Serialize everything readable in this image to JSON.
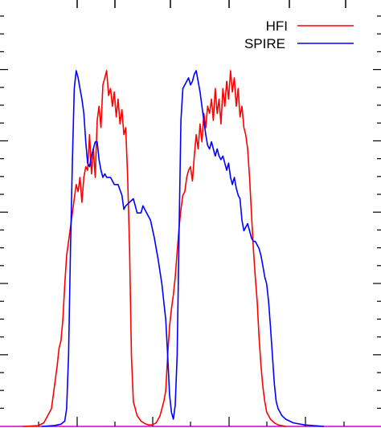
{
  "chart_data": {
    "type": "line",
    "title": "",
    "xlabel": "",
    "ylabel": "",
    "xlim": [
      0,
      100
    ],
    "ylim": [
      0,
      1.0
    ],
    "grid": false,
    "legend_position": "top-right",
    "series": [
      {
        "name": "HFI",
        "color": "#ff0000",
        "points": [
          [
            6.0,
            0.0
          ],
          [
            10.0,
            0.002
          ],
          [
            11.5,
            0.01
          ],
          [
            12.5,
            0.03
          ],
          [
            13.5,
            0.05
          ],
          [
            14.0,
            0.09
          ],
          [
            15.0,
            0.17
          ],
          [
            15.5,
            0.22
          ],
          [
            16.0,
            0.24
          ],
          [
            16.5,
            0.3
          ],
          [
            17.0,
            0.4
          ],
          [
            17.5,
            0.48
          ],
          [
            18.0,
            0.52
          ],
          [
            18.5,
            0.56
          ],
          [
            19.0,
            0.6
          ],
          [
            19.5,
            0.64
          ],
          [
            20.0,
            0.68
          ],
          [
            20.5,
            0.66
          ],
          [
            21.0,
            0.7
          ],
          [
            21.5,
            0.63
          ],
          [
            22.0,
            0.7
          ],
          [
            22.5,
            0.73
          ],
          [
            23.0,
            0.72
          ],
          [
            23.5,
            0.82
          ],
          [
            24.0,
            0.71
          ],
          [
            24.5,
            0.78
          ],
          [
            25.0,
            0.7
          ],
          [
            25.5,
            0.86
          ],
          [
            26.0,
            0.9
          ],
          [
            26.5,
            0.84
          ],
          [
            27.0,
            0.96
          ],
          [
            27.5,
            0.98
          ],
          [
            28.0,
            1.0
          ],
          [
            28.5,
            0.93
          ],
          [
            29.0,
            0.95
          ],
          [
            29.5,
            0.9
          ],
          [
            30.0,
            0.94
          ],
          [
            30.5,
            0.87
          ],
          [
            31.0,
            0.92
          ],
          [
            31.5,
            0.85
          ],
          [
            32.0,
            0.89
          ],
          [
            32.5,
            0.82
          ],
          [
            33.0,
            0.84
          ],
          [
            33.5,
            0.7
          ],
          [
            34.0,
            0.5
          ],
          [
            34.5,
            0.2
          ],
          [
            35.0,
            0.07
          ],
          [
            36.0,
            0.03
          ],
          [
            37.0,
            0.015
          ],
          [
            38.0,
            0.008
          ],
          [
            39.0,
            0.004
          ],
          [
            40.0,
            0.004
          ],
          [
            41.0,
            0.01
          ],
          [
            42.0,
            0.03
          ],
          [
            43.0,
            0.07
          ],
          [
            43.5,
            0.1
          ],
          [
            44.0,
            0.2
          ],
          [
            44.5,
            0.28
          ],
          [
            45.0,
            0.33
          ],
          [
            45.5,
            0.37
          ],
          [
            46.0,
            0.42
          ],
          [
            46.5,
            0.49
          ],
          [
            47.0,
            0.56
          ],
          [
            47.5,
            0.61
          ],
          [
            48.0,
            0.65
          ],
          [
            48.5,
            0.66
          ],
          [
            49.0,
            0.7
          ],
          [
            49.5,
            0.72
          ],
          [
            50.0,
            0.73
          ],
          [
            50.5,
            0.69
          ],
          [
            51.0,
            0.76
          ],
          [
            51.5,
            0.82
          ],
          [
            52.0,
            0.78
          ],
          [
            52.5,
            0.85
          ],
          [
            53.0,
            0.8
          ],
          [
            53.5,
            0.88
          ],
          [
            54.0,
            0.84
          ],
          [
            54.5,
            0.9
          ],
          [
            55.0,
            0.88
          ],
          [
            55.5,
            0.92
          ],
          [
            56.0,
            0.86
          ],
          [
            56.5,
            0.95
          ],
          [
            57.0,
            0.88
          ],
          [
            57.5,
            0.92
          ],
          [
            58.0,
            0.85
          ],
          [
            58.5,
            0.95
          ],
          [
            59.0,
            0.9
          ],
          [
            59.5,
            0.97
          ],
          [
            60.0,
            0.92
          ],
          [
            60.5,
            1.0
          ],
          [
            61.0,
            0.94
          ],
          [
            61.5,
            0.98
          ],
          [
            62.0,
            0.9
          ],
          [
            62.5,
            0.95
          ],
          [
            63.0,
            0.87
          ],
          [
            63.5,
            0.9
          ],
          [
            64.0,
            0.84
          ],
          [
            64.5,
            0.82
          ],
          [
            65.0,
            0.78
          ],
          [
            65.5,
            0.7
          ],
          [
            66.0,
            0.6
          ],
          [
            66.5,
            0.5
          ],
          [
            67.0,
            0.42
          ],
          [
            67.5,
            0.35
          ],
          [
            68.0,
            0.25
          ],
          [
            68.5,
            0.17
          ],
          [
            69.0,
            0.11
          ],
          [
            69.5,
            0.07
          ],
          [
            70.0,
            0.04
          ],
          [
            71.0,
            0.02
          ],
          [
            72.0,
            0.01
          ],
          [
            73.0,
            0.004
          ],
          [
            75.0,
            0.0
          ]
        ]
      },
      {
        "name": "SPIRE",
        "color": "#0000ff",
        "points": [
          [
            11.0,
            0.0
          ],
          [
            14.0,
            0.002
          ],
          [
            16.0,
            0.006
          ],
          [
            17.0,
            0.015
          ],
          [
            17.5,
            0.05
          ],
          [
            18.0,
            0.2
          ],
          [
            18.5,
            0.5
          ],
          [
            19.0,
            0.75
          ],
          [
            19.5,
            0.95
          ],
          [
            20.0,
            1.0
          ],
          [
            20.5,
            0.98
          ],
          [
            21.0,
            0.95
          ],
          [
            21.5,
            0.92
          ],
          [
            22.0,
            0.88
          ],
          [
            22.5,
            0.8
          ],
          [
            23.0,
            0.74
          ],
          [
            23.5,
            0.73
          ],
          [
            24.0,
            0.76
          ],
          [
            24.5,
            0.78
          ],
          [
            25.0,
            0.8
          ],
          [
            25.5,
            0.8
          ],
          [
            26.0,
            0.75
          ],
          [
            26.5,
            0.72
          ],
          [
            27.0,
            0.7
          ],
          [
            27.5,
            0.71
          ],
          [
            28.0,
            0.7
          ],
          [
            29.0,
            0.7
          ],
          [
            30.0,
            0.68
          ],
          [
            31.0,
            0.68
          ],
          [
            32.0,
            0.65
          ],
          [
            32.5,
            0.61
          ],
          [
            33.0,
            0.62
          ],
          [
            34.0,
            0.63
          ],
          [
            35.0,
            0.64
          ],
          [
            35.5,
            0.62
          ],
          [
            36.0,
            0.6
          ],
          [
            37.0,
            0.6
          ],
          [
            37.5,
            0.62
          ],
          [
            38.0,
            0.61
          ],
          [
            38.5,
            0.6
          ],
          [
            39.5,
            0.58
          ],
          [
            40.5,
            0.53
          ],
          [
            41.5,
            0.47
          ],
          [
            42.5,
            0.4
          ],
          [
            43.5,
            0.3
          ],
          [
            44.0,
            0.2
          ],
          [
            44.5,
            0.09
          ],
          [
            45.0,
            0.04
          ],
          [
            45.5,
            0.02
          ],
          [
            46.0,
            0.06
          ],
          [
            46.5,
            0.2
          ],
          [
            47.0,
            0.55
          ],
          [
            47.5,
            0.86
          ],
          [
            48.0,
            0.95
          ],
          [
            48.5,
            0.96
          ],
          [
            49.0,
            0.97
          ],
          [
            49.5,
            0.98
          ],
          [
            50.0,
            0.96
          ],
          [
            50.5,
            0.97
          ],
          [
            51.0,
            0.99
          ],
          [
            51.5,
            1.0
          ],
          [
            52.0,
            0.97
          ],
          [
            52.5,
            0.94
          ],
          [
            53.0,
            0.9
          ],
          [
            53.5,
            0.86
          ],
          [
            54.0,
            0.82
          ],
          [
            54.5,
            0.79
          ],
          [
            55.0,
            0.78
          ],
          [
            55.5,
            0.8
          ],
          [
            56.0,
            0.78
          ],
          [
            56.5,
            0.76
          ],
          [
            57.0,
            0.78
          ],
          [
            57.5,
            0.76
          ],
          [
            58.0,
            0.75
          ],
          [
            58.5,
            0.76
          ],
          [
            59.0,
            0.74
          ],
          [
            59.5,
            0.72
          ],
          [
            60.0,
            0.74
          ],
          [
            60.5,
            0.7
          ],
          [
            61.0,
            0.68
          ],
          [
            61.5,
            0.7
          ],
          [
            62.0,
            0.67
          ],
          [
            62.5,
            0.65
          ],
          [
            63.0,
            0.64
          ],
          [
            63.5,
            0.58
          ],
          [
            64.0,
            0.55
          ],
          [
            64.5,
            0.56
          ],
          [
            65.0,
            0.57
          ],
          [
            65.5,
            0.55
          ],
          [
            66.0,
            0.53
          ],
          [
            66.5,
            0.52
          ],
          [
            67.0,
            0.52
          ],
          [
            67.5,
            0.51
          ],
          [
            68.0,
            0.5
          ],
          [
            68.5,
            0.48
          ],
          [
            69.0,
            0.45
          ],
          [
            69.5,
            0.42
          ],
          [
            70.0,
            0.4
          ],
          [
            70.5,
            0.35
          ],
          [
            71.0,
            0.28
          ],
          [
            71.5,
            0.2
          ],
          [
            72.0,
            0.12
          ],
          [
            72.5,
            0.07
          ],
          [
            73.0,
            0.05
          ],
          [
            74.0,
            0.03
          ],
          [
            75.0,
            0.02
          ],
          [
            77.0,
            0.01
          ],
          [
            80.0,
            0.004
          ],
          [
            85.0,
            0.0
          ]
        ]
      }
    ]
  }
}
